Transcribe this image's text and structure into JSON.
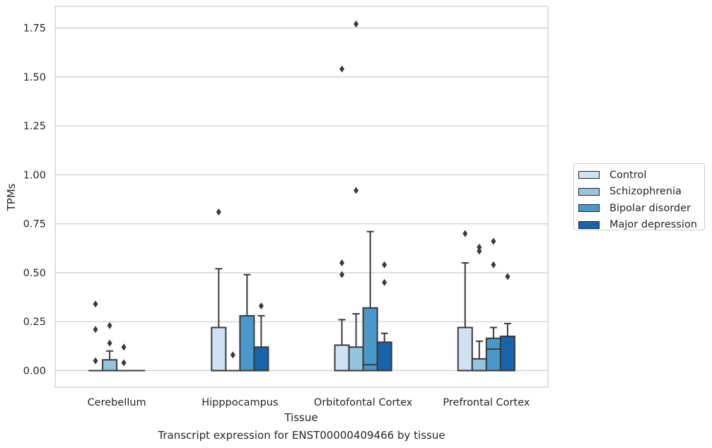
{
  "caption": "Transcript expression for ENST00000409466 by tissue",
  "chart_data": {
    "type": "box",
    "xlabel": "Tissue",
    "ylabel": "TPMs",
    "ylim": [
      -0.085,
      1.86
    ],
    "yticks": [
      "0.00",
      "0.25",
      "0.50",
      "0.75",
      "1.00",
      "1.25",
      "1.50",
      "1.75"
    ],
    "grid": true,
    "legend_placement": "right",
    "categories": [
      "Cerebellum",
      "Hipppocampus",
      "Orbitofontal Cortex",
      "Prefrontal Cortex"
    ],
    "series": [
      {
        "name": "Control",
        "color": "#d0e1f2",
        "boxes": [
          {
            "q1": 0,
            "median": 0,
            "q3": 0,
            "whisker_low": 0,
            "whisker_high": 0,
            "outliers": [
              0.34,
              0.21,
              0.05
            ]
          },
          {
            "q1": 0,
            "median": 0,
            "q3": 0.22,
            "whisker_low": 0,
            "whisker_high": 0.52,
            "outliers": [
              0.81
            ]
          },
          {
            "q1": 0,
            "median": 0,
            "q3": 0.13,
            "whisker_low": 0,
            "whisker_high": 0.26,
            "outliers": [
              1.54,
              0.55,
              0.49
            ]
          },
          {
            "q1": 0,
            "median": 0,
            "q3": 0.22,
            "whisker_low": 0,
            "whisker_high": 0.55,
            "outliers": [
              0.7
            ]
          }
        ]
      },
      {
        "name": "Schizophrenia",
        "color": "#94c4df",
        "boxes": [
          {
            "q1": 0,
            "median": 0,
            "q3": 0.055,
            "whisker_low": 0,
            "whisker_high": 0.1,
            "outliers": [
              0.23,
              0.14
            ]
          },
          {
            "q1": 0,
            "median": 0,
            "q3": 0,
            "whisker_low": 0,
            "whisker_high": 0,
            "outliers": [
              0.08
            ]
          },
          {
            "q1": 0,
            "median": 0,
            "q3": 0.12,
            "whisker_low": 0,
            "whisker_high": 0.29,
            "outliers": [
              1.77,
              0.92
            ]
          },
          {
            "q1": 0,
            "median": 0,
            "q3": 0.06,
            "whisker_low": 0,
            "whisker_high": 0.15,
            "outliers": [
              0.63,
              0.61
            ]
          }
        ]
      },
      {
        "name": "Bipolar disorder",
        "color": "#4a98c9",
        "boxes": [
          {
            "q1": 0,
            "median": 0,
            "q3": 0,
            "whisker_low": 0,
            "whisker_high": 0,
            "outliers": [
              0.12,
              0.04
            ]
          },
          {
            "q1": 0,
            "median": 0,
            "q3": 0.28,
            "whisker_low": 0,
            "whisker_high": 0.49,
            "outliers": []
          },
          {
            "q1": 0,
            "median": 0.03,
            "q3": 0.32,
            "whisker_low": 0,
            "whisker_high": 0.71,
            "outliers": []
          },
          {
            "q1": 0,
            "median": 0.11,
            "q3": 0.165,
            "whisker_low": 0,
            "whisker_high": 0.22,
            "outliers": [
              0.66,
              0.54
            ]
          }
        ]
      },
      {
        "name": "Major depression",
        "color": "#1764ab",
        "boxes": [
          {
            "q1": 0,
            "median": 0,
            "q3": 0,
            "whisker_low": 0,
            "whisker_high": 0,
            "outliers": []
          },
          {
            "q1": 0,
            "median": 0,
            "q3": 0.12,
            "whisker_low": 0,
            "whisker_high": 0.28,
            "outliers": [
              0.33
            ]
          },
          {
            "q1": 0,
            "median": 0,
            "q3": 0.145,
            "whisker_low": 0,
            "whisker_high": 0.19,
            "outliers": [
              0.54,
              0.45
            ]
          },
          {
            "q1": 0,
            "median": 0,
            "q3": 0.175,
            "whisker_low": 0,
            "whisker_high": 0.24,
            "outliers": [
              0.48
            ]
          }
        ]
      }
    ]
  }
}
